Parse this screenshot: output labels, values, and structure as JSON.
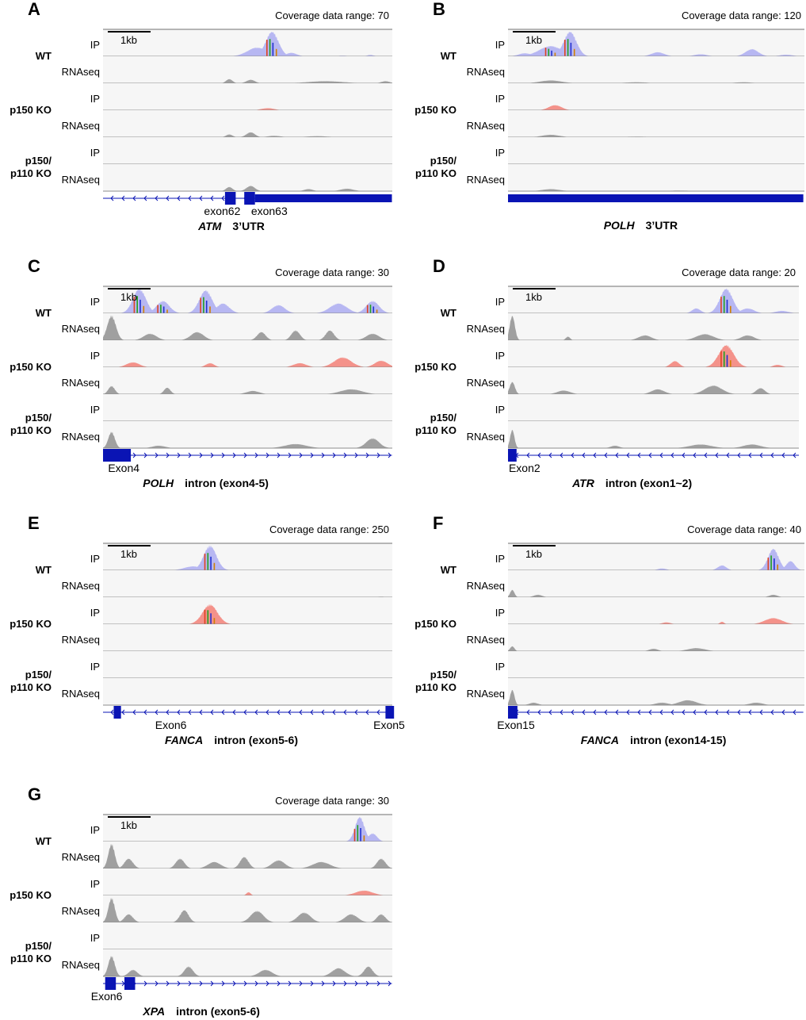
{
  "colors": {
    "ip_wt": "#b7b7f2",
    "ip_ko": "#f4928a",
    "rnaseq": "#a0a0a0",
    "gene": "#0a14b4",
    "track_bg": "#f6f6f6",
    "axis": "#8c8c8c"
  },
  "row_labels": [
    "IP",
    "RNAseq",
    "IP",
    "RNAseq",
    "IP",
    "RNAseq"
  ],
  "sample_labels": [
    [
      "WT"
    ],
    [
      "p150 KO"
    ],
    [
      "p150/",
      "p110 KO"
    ]
  ],
  "scale_bar": "1kb",
  "chart_data": [
    {
      "type": "area",
      "panel": "A",
      "title": "Coverage data range: 70",
      "range": 70,
      "window_kb": 6.75,
      "tracks": [
        [
          [
            3.95,
            70,
            0.3
          ],
          [
            3.6,
            25,
            0.45
          ],
          [
            4.4,
            10,
            0.25
          ],
          [
            6.25,
            4,
            0.15
          ],
          [
            5.6,
            2,
            0.2
          ]
        ],
        [
          [
            2.95,
            12,
            0.15
          ],
          [
            3.45,
            10,
            0.2
          ],
          [
            5.2,
            6,
            0.8
          ],
          [
            6.6,
            6,
            0.2
          ]
        ],
        [
          [
            3.85,
            6,
            0.3
          ]
        ],
        [
          [
            2.95,
            8,
            0.15
          ],
          [
            3.45,
            14,
            0.2
          ],
          [
            4,
            4,
            0.3
          ],
          [
            5,
            3,
            0.5
          ]
        ],
        [],
        [
          [
            2.95,
            12,
            0.15
          ],
          [
            3.45,
            15,
            0.2
          ],
          [
            4.8,
            6,
            0.2
          ],
          [
            5.7,
            7,
            0.3
          ]
        ]
      ],
      "gene": {
        "line": [
          0,
          6.75
        ],
        "exons": [
          [
            2.85,
            3.1
          ],
          [
            3.3,
            3.55
          ]
        ],
        "utr": [
          [
            3.55,
            6.75
          ]
        ],
        "strand": "-",
        "labels": [
          {
            "text": "exon62",
            "kb": 2.6
          },
          {
            "text": "exon63",
            "kb": 3.7
          }
        ],
        "name": "ATM",
        "region": "3’UTR",
        "title_kb": 3.0
      }
    },
    {
      "type": "area",
      "panel": "B",
      "title": "Coverage data range: 120",
      "range": 120,
      "window_kb": 6.9,
      "tracks": [
        [
          [
            1.45,
            120,
            0.3
          ],
          [
            1.0,
            50,
            0.55
          ],
          [
            0.4,
            15,
            0.3
          ],
          [
            3.5,
            20,
            0.3
          ],
          [
            4.5,
            10,
            0.3
          ],
          [
            5.7,
            35,
            0.3
          ],
          [
            6.5,
            8,
            0.3
          ]
        ],
        [
          [
            1.0,
            14,
            0.5
          ],
          [
            3,
            5,
            0.5
          ],
          [
            5.5,
            5,
            0.4
          ]
        ],
        [
          [
            1.1,
            25,
            0.3
          ]
        ],
        [
          [
            1.0,
            12,
            0.4
          ],
          [
            3,
            3,
            0.5
          ]
        ],
        [],
        [
          [
            1.0,
            10,
            0.4
          ],
          [
            4,
            3,
            0.5
          ]
        ]
      ],
      "gene": {
        "line": [
          0,
          6.9
        ],
        "exons": [],
        "utr": [
          [
            0,
            6.9
          ]
        ],
        "strand": "-",
        "labels": [],
        "name": "POLH",
        "region": "3’UTR",
        "title_kb": 3.1
      }
    },
    {
      "type": "area",
      "panel": "C",
      "title": "Coverage data range: 30",
      "range": 30,
      "window_kb": 6.75,
      "tracks": [
        [
          [
            0.85,
            30,
            0.3
          ],
          [
            1.4,
            15,
            0.3
          ],
          [
            2.4,
            28,
            0.3
          ],
          [
            2.8,
            12,
            0.3
          ],
          [
            4.1,
            10,
            0.3
          ],
          [
            5.5,
            12,
            0.4
          ],
          [
            6.3,
            15,
            0.3
          ]
        ],
        [
          [
            0.2,
            30,
            0.2
          ],
          [
            1.1,
            8,
            0.3
          ],
          [
            2.2,
            10,
            0.3
          ],
          [
            3.7,
            10,
            0.2
          ],
          [
            4.5,
            12,
            0.2
          ],
          [
            5.3,
            12,
            0.2
          ],
          [
            6.3,
            8,
            0.3
          ]
        ],
        [
          [
            0.7,
            6,
            0.3
          ],
          [
            2.5,
            5,
            0.2
          ],
          [
            4.6,
            5,
            0.3
          ],
          [
            5.6,
            12,
            0.4
          ],
          [
            6.5,
            8,
            0.3
          ]
        ],
        [
          [
            0.2,
            10,
            0.15
          ],
          [
            1.5,
            8,
            0.15
          ],
          [
            3.5,
            4,
            0.3
          ],
          [
            5.8,
            6,
            0.5
          ]
        ],
        [],
        [
          [
            0.2,
            20,
            0.15
          ],
          [
            1.3,
            3,
            0.3
          ],
          [
            4.5,
            5,
            0.5
          ],
          [
            6.3,
            12,
            0.3
          ]
        ]
      ],
      "gene": {
        "line": [
          0,
          6.75
        ],
        "exons": [
          [
            0,
            0.65
          ]
        ],
        "utr": [],
        "strand": "+",
        "labels": [
          {
            "text": "Exon4",
            "kb": 0.3
          }
        ],
        "name": "POLH",
        "region": "intron (exon4-5)",
        "title_kb": 2.4
      }
    },
    {
      "type": "area",
      "panel": "D",
      "title": "Coverage data range: 20",
      "range": 20,
      "window_kb": 6.8,
      "tracks": [
        [
          [
            5.1,
            20,
            0.3
          ],
          [
            4.4,
            4,
            0.2
          ],
          [
            5.6,
            4,
            0.3
          ],
          [
            6.4,
            2,
            0.3
          ]
        ],
        [
          [
            0.1,
            20,
            0.12
          ],
          [
            1.4,
            3,
            0.1
          ],
          [
            3.2,
            4,
            0.3
          ],
          [
            4.6,
            5,
            0.4
          ],
          [
            5.6,
            4,
            0.3
          ]
        ],
        [
          [
            5.1,
            18,
            0.35
          ],
          [
            3.9,
            5,
            0.2
          ],
          [
            6.3,
            2,
            0.2
          ]
        ],
        [
          [
            0.1,
            10,
            0.12
          ],
          [
            1.3,
            3,
            0.3
          ],
          [
            3.5,
            4,
            0.3
          ],
          [
            4.8,
            7,
            0.4
          ],
          [
            5.9,
            5,
            0.2
          ]
        ],
        [],
        [
          [
            0.1,
            15,
            0.1
          ],
          [
            2.5,
            2,
            0.2
          ],
          [
            4.5,
            3,
            0.5
          ],
          [
            5.7,
            3,
            0.4
          ]
        ]
      ],
      "gene": {
        "line": [
          0,
          6.8
        ],
        "exons": [
          [
            0,
            0.2
          ]
        ],
        "utr": [],
        "strand": "-",
        "labels": [
          {
            "text": "Exon2",
            "kb": 0.2
          }
        ],
        "name": "ATR",
        "region": "intron (exon1~2)",
        "title_kb": 2.9
      }
    },
    {
      "type": "area",
      "panel": "E",
      "title": "Coverage data range: 250",
      "range": 250,
      "window_kb": 6.75,
      "tracks": [
        [
          [
            2.5,
            250,
            0.3
          ],
          [
            2.1,
            40,
            0.4
          ]
        ],
        [
          [
            6.5,
            6,
            0.15
          ],
          [
            0.3,
            3,
            0.3
          ]
        ],
        [
          [
            2.5,
            200,
            0.35
          ]
        ],
        [
          [
            0.3,
            3,
            0.3
          ],
          [
            6.5,
            4,
            0.1
          ]
        ],
        [],
        [
          [
            0.3,
            3,
            0.2
          ]
        ]
      ],
      "gene": {
        "line": [
          0,
          6.75
        ],
        "exons": [
          [
            0.25,
            0.42
          ],
          [
            6.6,
            6.8
          ]
        ],
        "utr": [],
        "strand": "-",
        "labels": [
          {
            "text": "Exon6",
            "kb": 1.4
          },
          {
            "text": "Exon5",
            "kb": 6.5
          }
        ],
        "name": "FANCA",
        "region": "intron (exon5-6)",
        "title_kb": 3.0
      }
    },
    {
      "type": "area",
      "panel": "F",
      "title": "Coverage data range: 40",
      "range": 40,
      "window_kb": 6.9,
      "tracks": [
        [
          [
            6.2,
            35,
            0.25
          ],
          [
            5.0,
            8,
            0.2
          ],
          [
            3.6,
            3,
            0.2
          ],
          [
            6.6,
            15,
            0.2
          ]
        ],
        [
          [
            0.1,
            12,
            0.1
          ],
          [
            0.7,
            4,
            0.2
          ],
          [
            6.2,
            4,
            0.2
          ]
        ],
        [
          [
            6.2,
            10,
            0.4
          ],
          [
            5.0,
            4,
            0.1
          ],
          [
            3.7,
            3,
            0.2
          ]
        ],
        [
          [
            0.1,
            8,
            0.1
          ],
          [
            3.4,
            4,
            0.2
          ],
          [
            4.4,
            5,
            0.4
          ]
        ],
        [],
        [
          [
            0.1,
            25,
            0.1
          ],
          [
            0.6,
            4,
            0.2
          ],
          [
            3.6,
            4,
            0.3
          ],
          [
            4.2,
            8,
            0.4
          ],
          [
            5.8,
            4,
            0.3
          ]
        ]
      ],
      "gene": {
        "line": [
          0,
          6.9
        ],
        "exons": [
          [
            0,
            0.22
          ]
        ],
        "utr": [],
        "strand": "-",
        "labels": [
          {
            "text": "Exon15",
            "kb": 0.0
          }
        ],
        "name": "FANCA",
        "region": "intron (exon14-15)",
        "title_kb": 3.4
      }
    },
    {
      "type": "area",
      "panel": "G",
      "title": "Coverage data range: 30",
      "range": 30,
      "window_kb": 6.75,
      "tracks": [
        [
          [
            6.0,
            30,
            0.22
          ],
          [
            6.3,
            10,
            0.2
          ]
        ],
        [
          [
            0.2,
            30,
            0.15
          ],
          [
            0.6,
            12,
            0.2
          ],
          [
            1.8,
            12,
            0.2
          ],
          [
            2.6,
            8,
            0.3
          ],
          [
            3.3,
            14,
            0.2
          ],
          [
            4.1,
            10,
            0.3
          ],
          [
            5.1,
            8,
            0.4
          ],
          [
            6.5,
            12,
            0.2
          ]
        ],
        [
          [
            3.4,
            4,
            0.1
          ],
          [
            6.1,
            6,
            0.4
          ]
        ],
        [
          [
            0.2,
            30,
            0.15
          ],
          [
            0.6,
            10,
            0.2
          ],
          [
            1.9,
            15,
            0.2
          ],
          [
            3.6,
            14,
            0.3
          ],
          [
            4.7,
            12,
            0.3
          ],
          [
            5.8,
            10,
            0.3
          ],
          [
            6.5,
            10,
            0.2
          ]
        ],
        [],
        [
          [
            0.2,
            25,
            0.15
          ],
          [
            0.7,
            8,
            0.2
          ],
          [
            2,
            12,
            0.2
          ],
          [
            3.8,
            8,
            0.3
          ],
          [
            5.5,
            10,
            0.3
          ],
          [
            6.2,
            12,
            0.2
          ]
        ]
      ],
      "gene": {
        "line": [
          0,
          6.75
        ],
        "exons": [
          [
            0.05,
            0.3
          ],
          [
            0.5,
            0.75
          ]
        ],
        "utr": [],
        "strand": "+",
        "labels": [
          {
            "text": "Exon6",
            "kb": -0.1
          }
        ],
        "name": "XPA",
        "region": "intron (exon5-6)",
        "title_kb": 2.3
      }
    }
  ]
}
